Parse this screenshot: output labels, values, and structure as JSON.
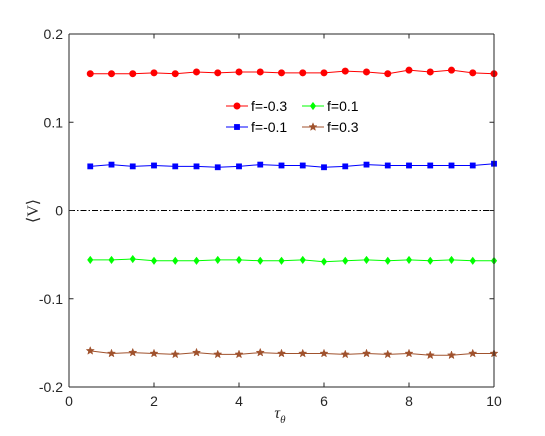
{
  "chart_data": {
    "type": "line",
    "xlabel_main": "τ",
    "xlabel_sub": "θ",
    "ylabel": "⟨V⟩",
    "xlim": [
      0,
      10
    ],
    "ylim": [
      -0.2,
      0.2
    ],
    "xticks": [
      0,
      2,
      4,
      6,
      8,
      10
    ],
    "yticks": [
      -0.2,
      -0.1,
      0,
      0.1,
      0.2
    ],
    "ytick_labels": [
      "-0.2",
      "-0.1",
      "0",
      "0.1",
      "0.2"
    ],
    "grid": false,
    "legend_position": "upper-center",
    "x": [
      0.5,
      1,
      1.5,
      2,
      2.5,
      3,
      3.5,
      4,
      4.5,
      5,
      5.5,
      6,
      6.5,
      7,
      7.5,
      8,
      8.5,
      9,
      9.5,
      10
    ],
    "reference_line": {
      "y": 0,
      "style": "dash-dot",
      "color": "#000000"
    },
    "series": [
      {
        "name": "f=-0.3",
        "color": "#ff0000",
        "marker": "circle",
        "values": [
          0.155,
          0.155,
          0.155,
          0.156,
          0.155,
          0.157,
          0.156,
          0.157,
          0.157,
          0.156,
          0.156,
          0.156,
          0.158,
          0.157,
          0.155,
          0.159,
          0.157,
          0.159,
          0.156,
          0.155
        ]
      },
      {
        "name": "f=-0.1",
        "color": "#0000ff",
        "marker": "square",
        "values": [
          0.05,
          0.052,
          0.05,
          0.051,
          0.05,
          0.05,
          0.049,
          0.05,
          0.052,
          0.051,
          0.051,
          0.049,
          0.05,
          0.052,
          0.051,
          0.051,
          0.051,
          0.051,
          0.051,
          0.053
        ]
      },
      {
        "name": "f=0.1",
        "color": "#00ff00",
        "marker": "diamond",
        "values": [
          -0.056,
          -0.056,
          -0.055,
          -0.057,
          -0.057,
          -0.057,
          -0.056,
          -0.056,
          -0.057,
          -0.057,
          -0.056,
          -0.058,
          -0.057,
          -0.056,
          -0.057,
          -0.056,
          -0.057,
          -0.056,
          -0.057,
          -0.057
        ]
      },
      {
        "name": "f=0.3",
        "color": "#a0522d",
        "marker": "star",
        "values": [
          -0.159,
          -0.162,
          -0.161,
          -0.162,
          -0.163,
          -0.161,
          -0.163,
          -0.163,
          -0.161,
          -0.162,
          -0.162,
          -0.162,
          -0.163,
          -0.162,
          -0.163,
          -0.162,
          -0.164,
          -0.164,
          -0.162,
          -0.162
        ]
      }
    ],
    "legend_layout": [
      [
        "f=-0.3",
        "f=0.1"
      ],
      [
        "f=-0.1",
        "f=0.3"
      ]
    ]
  }
}
